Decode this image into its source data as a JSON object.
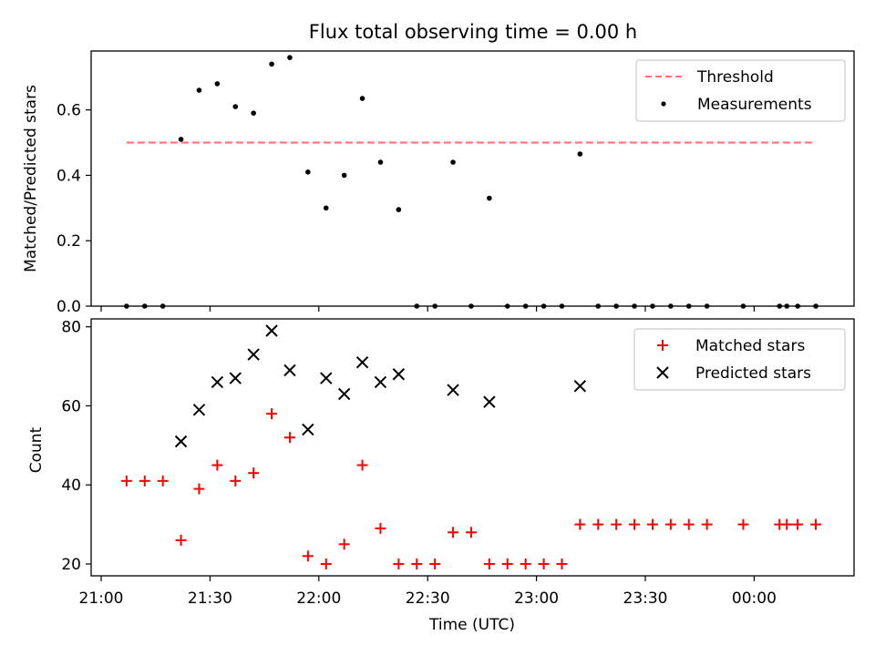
{
  "figure": {
    "title": "Flux total observing time = 0.00 h",
    "xlabel": "Time (UTC)",
    "x_ticks": [
      "21:00",
      "21:30",
      "22:00",
      "22:30",
      "23:00",
      "23:30",
      "00:00"
    ]
  },
  "chart_data": [
    {
      "type": "scatter",
      "title": "Flux total observing time = 0.00 h",
      "xlabel": "",
      "ylabel": "Matched/Predicted stars",
      "ylim": [
        0,
        0.78
      ],
      "yticks": [
        0.0,
        0.2,
        0.4,
        0.6
      ],
      "x_range": [
        "21:05",
        "00:17"
      ],
      "legend_position": "upper right",
      "grid": false,
      "threshold": {
        "name": "Threshold",
        "value": 0.5,
        "x_start": "21:07",
        "x_end": "00:17",
        "color": "#ff7777",
        "style": "dashed"
      },
      "series": [
        {
          "name": "Measurements",
          "marker": "dot",
          "color": "#000000",
          "x": [
            "21:07",
            "21:12",
            "21:17",
            "21:22",
            "21:27",
            "21:32",
            "21:37",
            "21:42",
            "21:47",
            "21:52",
            "21:57",
            "22:02",
            "22:07",
            "22:12",
            "22:17",
            "22:22",
            "22:27",
            "22:32",
            "22:37",
            "22:42",
            "22:47",
            "22:52",
            "22:57",
            "23:02",
            "23:07",
            "23:12",
            "23:17",
            "23:22",
            "23:27",
            "23:32",
            "23:37",
            "23:42",
            "23:47",
            "23:52",
            "23:57",
            "00:02",
            "00:07",
            "00:09",
            "00:12",
            "00:17"
          ],
          "y": [
            0,
            0,
            0,
            0.51,
            0.66,
            0.68,
            0.61,
            0.59,
            0.74,
            0.76,
            0.41,
            0.3,
            0.4,
            0.635,
            0.44,
            0.295,
            0,
            0,
            0.44,
            0,
            0.33,
            0,
            0,
            0,
            0,
            0.465,
            0,
            0,
            0,
            0,
            0,
            0,
            0,
            null,
            0,
            null,
            0,
            0,
            0,
            0
          ]
        }
      ]
    },
    {
      "type": "scatter",
      "xlabel": "Time (UTC)",
      "ylabel": "Count",
      "ylim": [
        17,
        82
      ],
      "yticks": [
        20,
        40,
        60,
        80
      ],
      "x_range": [
        "21:05",
        "00:17"
      ],
      "legend_position": "upper right",
      "grid": false,
      "series": [
        {
          "name": "Matched stars",
          "marker": "plus",
          "color": "#ff0000",
          "x": [
            "21:07",
            "21:12",
            "21:17",
            "21:22",
            "21:27",
            "21:32",
            "21:37",
            "21:42",
            "21:47",
            "21:52",
            "21:57",
            "22:02",
            "22:07",
            "22:12",
            "22:17",
            "22:22",
            "22:27",
            "22:32",
            "22:37",
            "22:42",
            "22:47",
            "22:52",
            "22:57",
            "23:02",
            "23:07",
            "23:12",
            "23:17",
            "23:22",
            "23:27",
            "23:32",
            "23:37",
            "23:42",
            "23:47",
            "23:57",
            "00:07",
            "00:09",
            "00:12",
            "00:17"
          ],
          "y": [
            41,
            41,
            41,
            26,
            39,
            45,
            41,
            43,
            58,
            52,
            22,
            20,
            25,
            45,
            29,
            20,
            20,
            20,
            28,
            28,
            20,
            20,
            20,
            20,
            20,
            30,
            30,
            30,
            30,
            30,
            30,
            30,
            30,
            30,
            30,
            30,
            30,
            30
          ]
        },
        {
          "name": "Predicted stars",
          "marker": "x",
          "color": "#000000",
          "x": [
            "21:22",
            "21:27",
            "21:32",
            "21:37",
            "21:42",
            "21:47",
            "21:52",
            "21:57",
            "22:02",
            "22:07",
            "22:12",
            "22:17",
            "22:22",
            "22:37",
            "22:47",
            "23:12"
          ],
          "y": [
            51,
            59,
            66,
            67,
            73,
            79,
            69,
            54,
            67,
            63,
            71,
            66,
            68,
            64,
            61,
            65
          ]
        }
      ]
    }
  ]
}
